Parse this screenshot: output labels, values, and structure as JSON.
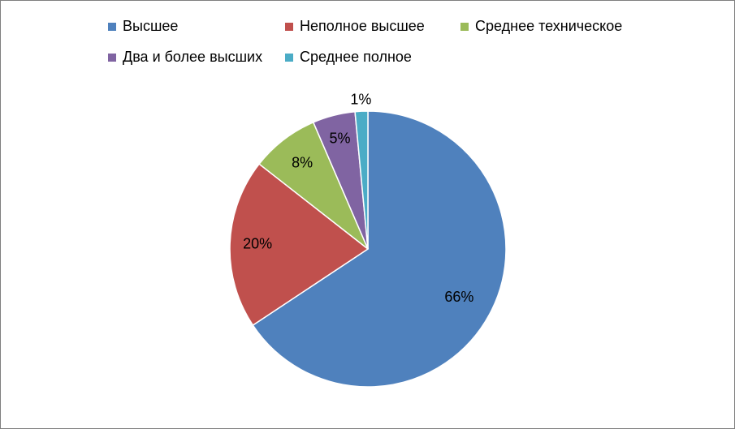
{
  "chart_data": {
    "type": "pie",
    "title": "",
    "legend_position": "top",
    "start_angle_deg": 0,
    "direction": "clockwise",
    "slices": [
      {
        "name": "Высшее",
        "value": 66,
        "label": "66%",
        "color": "#4F81BD"
      },
      {
        "name": "Неполное высшее",
        "value": 20,
        "label": "20%",
        "color": "#C0504D"
      },
      {
        "name": "Среднее техническое",
        "value": 8,
        "label": "8%",
        "color": "#9BBB59"
      },
      {
        "name": "Два и более высших",
        "value": 5,
        "label": "5%",
        "color": "#8064A2"
      },
      {
        "name": "Среднее полное",
        "value": 1.5,
        "label": "1%",
        "color": "#4BACC6"
      }
    ]
  }
}
